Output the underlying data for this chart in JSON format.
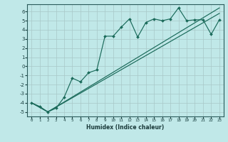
{
  "xlabel": "Humidex (Indice chaleur)",
  "bg_color": "#c0e8e8",
  "grid_color": "#a8c8c8",
  "line_color": "#1a6a5a",
  "xlim": [
    -0.5,
    23.5
  ],
  "ylim": [
    -5.5,
    6.8
  ],
  "yticks": [
    -5,
    -4,
    -3,
    -2,
    -1,
    0,
    1,
    2,
    3,
    4,
    5,
    6
  ],
  "xticks": [
    0,
    1,
    2,
    3,
    4,
    5,
    6,
    7,
    8,
    9,
    10,
    11,
    12,
    13,
    14,
    15,
    16,
    17,
    18,
    19,
    20,
    21,
    22,
    23
  ],
  "line1_x": [
    0,
    1,
    2,
    3,
    4,
    5,
    6,
    7,
    8,
    9,
    10,
    11,
    12,
    13,
    14,
    15,
    16,
    17,
    18,
    19,
    20,
    21,
    22,
    23
  ],
  "line1_y": [
    -4.0,
    -4.4,
    -5.0,
    -4.6,
    -3.4,
    -1.3,
    -1.7,
    -0.7,
    -0.4,
    3.3,
    3.3,
    4.3,
    5.2,
    3.2,
    4.8,
    5.2,
    5.0,
    5.2,
    6.4,
    5.0,
    5.1,
    5.1,
    3.5,
    5.1
  ],
  "line2_x": [
    0,
    2,
    23
  ],
  "line2_y": [
    -4.0,
    -5.0,
    5.8
  ],
  "line3_x": [
    0,
    2,
    23
  ],
  "line3_y": [
    -4.0,
    -5.0,
    6.4
  ]
}
